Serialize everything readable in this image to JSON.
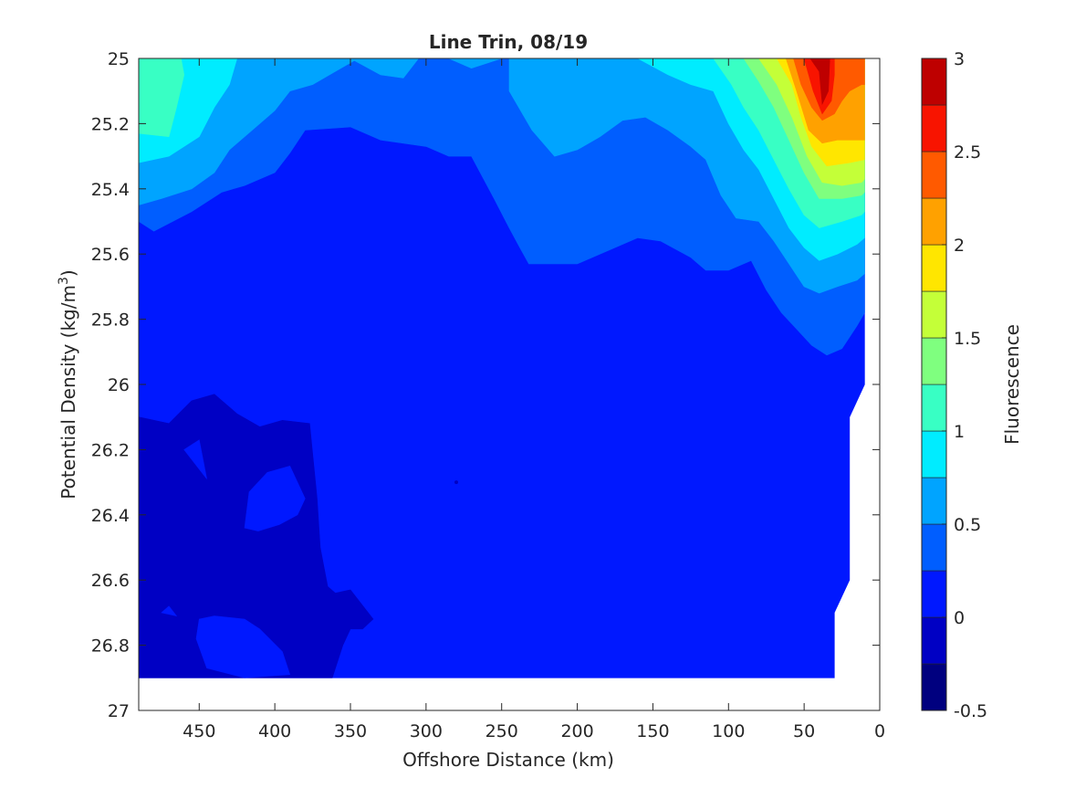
{
  "chart_data": {
    "type": "heatmap",
    "subtype": "filled-contour",
    "title": "Line Trin, 08/19",
    "xlabel": "Offshore Distance (km)",
    "ylabel_main": "Potential Density (kg/m",
    "ylabel_sup": "3",
    "ylabel_close": ")",
    "colorbar_label": "Fluorescence",
    "xlim": [
      490,
      0
    ],
    "x_reversed": true,
    "ylim": [
      25,
      27
    ],
    "y_reversed": true,
    "xticks": [
      450,
      400,
      350,
      300,
      250,
      200,
      150,
      100,
      50,
      0
    ],
    "xtick_labels": [
      "450",
      "400",
      "350",
      "300",
      "250",
      "200",
      "150",
      "100",
      "50",
      "0"
    ],
    "yticks": [
      25,
      25.2,
      25.4,
      25.6,
      25.8,
      26,
      26.2,
      26.4,
      26.6,
      26.8,
      27
    ],
    "ytick_labels": [
      "25",
      "25.2",
      "25.4",
      "25.6",
      "25.8",
      "26",
      "26.2",
      "26.4",
      "26.6",
      "26.8",
      "27"
    ],
    "clim": [
      -0.5,
      3
    ],
    "cticks": [
      -0.5,
      0,
      0.5,
      1,
      1.5,
      2,
      2.5,
      3
    ],
    "ctick_labels": [
      "-0.5",
      "0",
      "0.5",
      "1",
      "1.5",
      "2",
      "2.5",
      "3"
    ],
    "contour_levels": [
      -0.5,
      -0.25,
      0,
      0.25,
      0.5,
      0.75,
      1,
      1.25,
      1.5,
      1.75,
      2,
      2.25,
      2.5,
      2.75,
      3
    ],
    "colormap": [
      "#00007f",
      "#0000c4",
      "#0018ff",
      "#005eff",
      "#00a4ff",
      "#00ecff",
      "#38ffc4",
      "#7fff7f",
      "#c4ff38",
      "#ffe600",
      "#ffa100",
      "#ff5a00",
      "#f81400",
      "#be0000"
    ],
    "grid": false,
    "regions": [
      {
        "level": 0,
        "points": [
          [
            490,
            25
          ],
          [
            490,
            26.9
          ],
          [
            30,
            26.9
          ],
          [
            30,
            26.7
          ],
          [
            20,
            26.6
          ],
          [
            20,
            26.1
          ],
          [
            10,
            26
          ],
          [
            10,
            25
          ],
          [
            490,
            25
          ]
        ]
      },
      {
        "level": -1,
        "points": [
          [
            490,
            26.1
          ],
          [
            470,
            26.12
          ],
          [
            455,
            26.05
          ],
          [
            440,
            26.03
          ],
          [
            425,
            26.09
          ],
          [
            410,
            26.13
          ],
          [
            395,
            26.11
          ],
          [
            377,
            26.12
          ],
          [
            372,
            26.35
          ],
          [
            370,
            26.5
          ],
          [
            365,
            26.62
          ],
          [
            360,
            26.64
          ],
          [
            350,
            26.63
          ],
          [
            335,
            26.72
          ],
          [
            342,
            26.75
          ],
          [
            350,
            26.75
          ],
          [
            355,
            26.8
          ],
          [
            362,
            26.9
          ],
          [
            490,
            26.9
          ],
          [
            490,
            26.1
          ]
        ]
      },
      {
        "level": 0,
        "points": [
          [
            450,
            26.17
          ],
          [
            460,
            26.2
          ],
          [
            445,
            26.29
          ],
          [
            450,
            26.17
          ]
        ]
      },
      {
        "level": 0,
        "points": [
          [
            417,
            26.33
          ],
          [
            420,
            26.44
          ],
          [
            411,
            26.45
          ],
          [
            397,
            26.43
          ],
          [
            385,
            26.4
          ],
          [
            380,
            26.35
          ],
          [
            390,
            26.25
          ],
          [
            405,
            26.27
          ],
          [
            417,
            26.33
          ]
        ]
      },
      {
        "level": 0,
        "points": [
          [
            410,
            26.75
          ],
          [
            395,
            26.82
          ],
          [
            390,
            26.89
          ],
          [
            420,
            26.9
          ],
          [
            445,
            26.87
          ],
          [
            452,
            26.78
          ],
          [
            450,
            26.72
          ],
          [
            440,
            26.71
          ],
          [
            420,
            26.72
          ],
          [
            410,
            26.75
          ]
        ]
      },
      {
        "level": 0,
        "points": [
          [
            475,
            26.7
          ],
          [
            465,
            26.71
          ],
          [
            470,
            26.68
          ],
          [
            475,
            26.7
          ]
        ]
      },
      {
        "level": 1,
        "points": [
          [
            490,
            25
          ],
          [
            490,
            25.5
          ],
          [
            480,
            25.53
          ],
          [
            455,
            25.47
          ],
          [
            435,
            25.41
          ],
          [
            420,
            25.39
          ],
          [
            400,
            25.35
          ],
          [
            390,
            25.29
          ],
          [
            380,
            25.22
          ],
          [
            350,
            25.21
          ],
          [
            330,
            25.25
          ],
          [
            300,
            25.27
          ],
          [
            285,
            25.3
          ],
          [
            270,
            25.3
          ],
          [
            255,
            25.43
          ],
          [
            245,
            25.52
          ],
          [
            238,
            25.58
          ],
          [
            232,
            25.63
          ],
          [
            200,
            25.63
          ],
          [
            175,
            25.58
          ],
          [
            160,
            25.55
          ],
          [
            145,
            25.56
          ],
          [
            125,
            25.61
          ],
          [
            115,
            25.65
          ],
          [
            100,
            25.65
          ],
          [
            85,
            25.62
          ],
          [
            75,
            25.71
          ],
          [
            65,
            25.78
          ],
          [
            55,
            25.83
          ],
          [
            45,
            25.88
          ],
          [
            35,
            25.91
          ],
          [
            25,
            25.89
          ],
          [
            15,
            25.82
          ],
          [
            10,
            25.78
          ],
          [
            10,
            25
          ],
          [
            490,
            25
          ]
        ]
      },
      {
        "level": 2,
        "points": [
          [
            490,
            25
          ],
          [
            490,
            25.45
          ],
          [
            475,
            25.43
          ],
          [
            455,
            25.4
          ],
          [
            440,
            25.35
          ],
          [
            430,
            25.28
          ],
          [
            415,
            25.22
          ],
          [
            400,
            25.16
          ],
          [
            390,
            25.1
          ],
          [
            375,
            25.08
          ],
          [
            360,
            25.04
          ],
          [
            345,
            25
          ],
          [
            490,
            25
          ]
        ]
      },
      {
        "level": 2,
        "points": [
          [
            350,
            25
          ],
          [
            330,
            25.05
          ],
          [
            315,
            25.06
          ],
          [
            305,
            25
          ],
          [
            350,
            25
          ]
        ]
      },
      {
        "level": 2,
        "points": [
          [
            285,
            25
          ],
          [
            270,
            25.03
          ],
          [
            250,
            25
          ],
          [
            285,
            25
          ]
        ]
      },
      {
        "level": 2,
        "points": [
          [
            245,
            25
          ],
          [
            245,
            25.1
          ],
          [
            230,
            25.22
          ],
          [
            215,
            25.3
          ],
          [
            200,
            25.28
          ],
          [
            185,
            25.24
          ],
          [
            170,
            25.19
          ],
          [
            155,
            25.18
          ],
          [
            140,
            25.22
          ],
          [
            125,
            25.27
          ],
          [
            115,
            25.31
          ],
          [
            105,
            25.42
          ],
          [
            95,
            25.49
          ],
          [
            80,
            25.5
          ],
          [
            70,
            25.56
          ],
          [
            60,
            25.63
          ],
          [
            50,
            25.7
          ],
          [
            40,
            25.72
          ],
          [
            28,
            25.7
          ],
          [
            15,
            25.68
          ],
          [
            10,
            25.66
          ],
          [
            10,
            25
          ],
          [
            245,
            25
          ]
        ]
      },
      {
        "level": 3,
        "points": [
          [
            490,
            25
          ],
          [
            490,
            25.32
          ],
          [
            470,
            25.3
          ],
          [
            450,
            25.24
          ],
          [
            440,
            25.15
          ],
          [
            430,
            25.08
          ],
          [
            425,
            25
          ],
          [
            490,
            25
          ]
        ]
      },
      {
        "level": 3,
        "points": [
          [
            160,
            25
          ],
          [
            140,
            25.05
          ],
          [
            125,
            25.08
          ],
          [
            110,
            25.1
          ],
          [
            100,
            25.2
          ],
          [
            90,
            25.28
          ],
          [
            80,
            25.34
          ],
          [
            70,
            25.43
          ],
          [
            60,
            25.52
          ],
          [
            50,
            25.58
          ],
          [
            40,
            25.62
          ],
          [
            28,
            25.6
          ],
          [
            15,
            25.57
          ],
          [
            10,
            25.55
          ],
          [
            10,
            25
          ],
          [
            160,
            25
          ]
        ]
      },
      {
        "level": 4,
        "points": [
          [
            490,
            25
          ],
          [
            490,
            25.23
          ],
          [
            470,
            25.24
          ],
          [
            465,
            25.15
          ],
          [
            460,
            25.05
          ],
          [
            462,
            25
          ],
          [
            490,
            25
          ]
        ]
      },
      {
        "level": 4,
        "points": [
          [
            110,
            25
          ],
          [
            98,
            25.08
          ],
          [
            90,
            25.15
          ],
          [
            80,
            25.22
          ],
          [
            70,
            25.31
          ],
          [
            60,
            25.4
          ],
          [
            50,
            25.48
          ],
          [
            40,
            25.52
          ],
          [
            25,
            25.5
          ],
          [
            12,
            25.48
          ],
          [
            10,
            25.47
          ],
          [
            10,
            25
          ],
          [
            110,
            25
          ]
        ]
      },
      {
        "level": 5,
        "points": [
          [
            90,
            25
          ],
          [
            80,
            25.07
          ],
          [
            70,
            25.15
          ],
          [
            60,
            25.25
          ],
          [
            50,
            25.35
          ],
          [
            40,
            25.43
          ],
          [
            25,
            25.43
          ],
          [
            12,
            25.42
          ],
          [
            10,
            25.41
          ],
          [
            10,
            25
          ],
          [
            90,
            25
          ]
        ]
      },
      {
        "level": 6,
        "points": [
          [
            80,
            25
          ],
          [
            68,
            25.08
          ],
          [
            58,
            25.18
          ],
          [
            48,
            25.3
          ],
          [
            38,
            25.38
          ],
          [
            25,
            25.39
          ],
          [
            12,
            25.38
          ],
          [
            10,
            25.37
          ],
          [
            10,
            25
          ],
          [
            80,
            25
          ]
        ]
      },
      {
        "level": 7,
        "points": [
          [
            68,
            25
          ],
          [
            58,
            25.08
          ],
          [
            52,
            25.18
          ],
          [
            45,
            25.27
          ],
          [
            35,
            25.33
          ],
          [
            20,
            25.32
          ],
          [
            10,
            25.31
          ],
          [
            10,
            25
          ],
          [
            68,
            25
          ]
        ]
      },
      {
        "level": 8,
        "points": [
          [
            62,
            25
          ],
          [
            55,
            25.1
          ],
          [
            47,
            25.22
          ],
          [
            38,
            25.26
          ],
          [
            28,
            25.25
          ],
          [
            18,
            25.25
          ],
          [
            10,
            25.25
          ],
          [
            10,
            25
          ],
          [
            62,
            25
          ]
        ]
      },
      {
        "level": 9,
        "points": [
          [
            57,
            25
          ],
          [
            52,
            25.08
          ],
          [
            45,
            25.15
          ],
          [
            38,
            25.19
          ],
          [
            30,
            25.17
          ],
          [
            25,
            25.13
          ],
          [
            20,
            25.1
          ],
          [
            12,
            25.08
          ],
          [
            10,
            25.08
          ],
          [
            10,
            25
          ],
          [
            57,
            25
          ]
        ]
      },
      {
        "level": 10,
        "points": [
          [
            50,
            25
          ],
          [
            44,
            25.1
          ],
          [
            38,
            25.17
          ],
          [
            32,
            25.13
          ],
          [
            30,
            25.05
          ],
          [
            30,
            25
          ],
          [
            50,
            25
          ]
        ]
      },
      {
        "level": 11,
        "points": [
          [
            46,
            25
          ],
          [
            40,
            25.04
          ],
          [
            38,
            25.14
          ],
          [
            34,
            25.1
          ],
          [
            33,
            25
          ],
          [
            46,
            25
          ]
        ]
      }
    ],
    "annotations": [
      {
        "x": 280,
        "y": 26.3
      }
    ]
  }
}
